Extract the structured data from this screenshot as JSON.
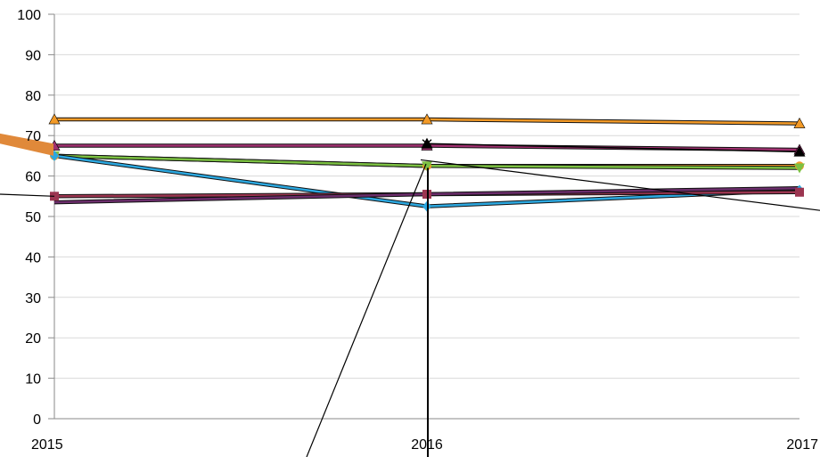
{
  "chart_data": {
    "type": "line",
    "x": [
      "2015",
      "2016",
      "2017"
    ],
    "ylim": [
      0,
      100
    ],
    "yticks": [
      0,
      10,
      20,
      30,
      40,
      50,
      60,
      70,
      80,
      90,
      100
    ],
    "grid": true,
    "legend": "none",
    "series": [
      {
        "color": "#F39A27",
        "marker": "triangle-up",
        "values": [
          74,
          74,
          73
        ]
      },
      {
        "color": "#A03070",
        "marker": "triangle-up",
        "values": [
          67.5,
          67.5,
          66.5
        ]
      },
      {
        "color": "#F39A27",
        "marker": "circle",
        "values": [
          65,
          62.5,
          62.5
        ]
      },
      {
        "color": "#7CC142",
        "marker": "triangle-down",
        "values": [
          65,
          62.5,
          62
        ]
      },
      {
        "color": "#2CA8E0",
        "marker": "diamond",
        "values": [
          65,
          52.5,
          56.5
        ]
      },
      {
        "color": "#9B3550",
        "marker": "square",
        "values": [
          55,
          55.5,
          56
        ]
      },
      {
        "color": "#6B2D6B",
        "marker": "none",
        "values": [
          53.5,
          55.5,
          57
        ]
      },
      {
        "color": "#000000",
        "marker": "triangle-up",
        "values": [
          null,
          68,
          66
        ]
      }
    ]
  }
}
